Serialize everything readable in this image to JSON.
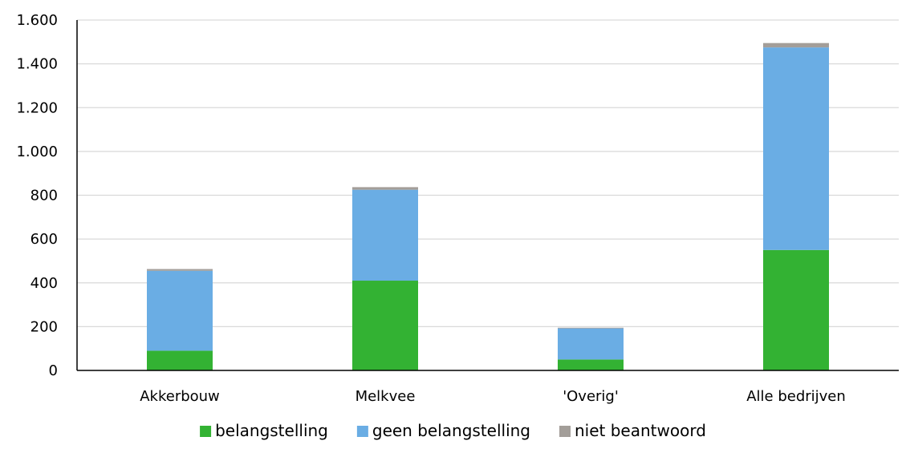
{
  "chart_data": {
    "type": "bar",
    "stacked": true,
    "categories": [
      "Akkerbouw",
      "Melkvee",
      "'Overig'",
      "Alle bedrijven"
    ],
    "series": [
      {
        "name": "belangstelling",
        "color": "#33b233",
        "values": [
          90,
          410,
          50,
          550
        ]
      },
      {
        "name": "geen belangstelling",
        "color": "#6aade4",
        "values": [
          365,
          415,
          142,
          925
        ]
      },
      {
        "name": "niet beantwoord",
        "color": "#a39e99",
        "values": [
          8,
          12,
          3,
          20
        ]
      }
    ],
    "ylim": [
      0,
      1600
    ],
    "yticks": [
      0,
      200,
      400,
      600,
      800,
      1000,
      1200,
      1400,
      1600
    ],
    "ytick_labels": [
      "0",
      "200",
      "400",
      "600",
      "800",
      "1.000",
      "1.200",
      "1.400",
      "1.600"
    ],
    "grid": true,
    "legend_position": "bottom",
    "title": "",
    "xlabel": "",
    "ylabel": ""
  }
}
